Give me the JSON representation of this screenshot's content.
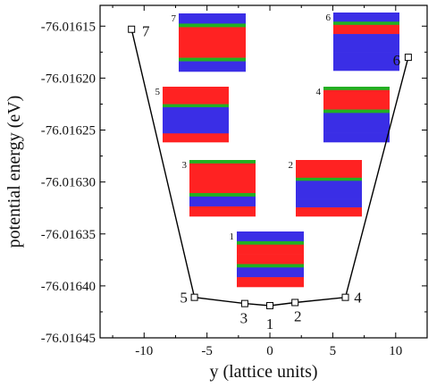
{
  "chart_data": {
    "type": "line",
    "xlabel": "y (lattice units)",
    "ylabel": "potential energy (eV)",
    "xlim": [
      -13.5,
      12.5
    ],
    "ylim": [
      -76.01645,
      -76.01613
    ],
    "x_ticks": [
      -10,
      -5,
      0,
      5,
      10
    ],
    "x_tick_labels": [
      "-10",
      "-5",
      "0",
      "5",
      "10"
    ],
    "y_ticks": [
      -76.01645,
      -76.0164,
      -76.01635,
      -76.0163,
      -76.01625,
      -76.0162,
      -76.01615
    ],
    "y_tick_labels": [
      "-76.01645",
      "-76.01640",
      "-76.01635",
      "-76.01630",
      "-76.01625",
      "-76.01620",
      "-76.01615"
    ],
    "grid": false,
    "series": [
      {
        "marker": "open-square",
        "color": "#000000",
        "points": [
          {
            "label": "7",
            "x": -11,
            "y": -76.016153
          },
          {
            "label": "5",
            "x": -6,
            "y": -76.016411
          },
          {
            "label": "3",
            "x": -2,
            "y": -76.016417
          },
          {
            "label": "1",
            "x": 0,
            "y": -76.016419
          },
          {
            "label": "2",
            "x": 2,
            "y": -76.016416
          },
          {
            "label": "4",
            "x": 6,
            "y": -76.016411
          },
          {
            "label": "6",
            "x": 11,
            "y": -76.01618
          }
        ]
      }
    ],
    "insets": [
      {
        "label": "7",
        "layers": [
          "blue",
          "green",
          "red",
          "red",
          "red",
          "green",
          "blue"
        ]
      },
      {
        "label": "6",
        "layers": [
          "blue",
          "green",
          "red",
          "blue",
          "blue",
          "blue",
          "blue"
        ]
      },
      {
        "label": "5",
        "layers": [
          "red",
          "red",
          "green",
          "blue",
          "blue",
          "blue",
          "red"
        ]
      },
      {
        "label": "4",
        "layers": [
          "green",
          "red",
          "red",
          "green",
          "blue",
          "blue",
          "blue"
        ]
      },
      {
        "label": "3",
        "layers": [
          "green",
          "red",
          "red",
          "red",
          "green",
          "blue",
          "red"
        ]
      },
      {
        "label": "2",
        "layers": [
          "red",
          "red",
          "green",
          "blue",
          "blue",
          "blue",
          "red"
        ]
      },
      {
        "label": "1",
        "layers": [
          "blue",
          "green",
          "red",
          "red",
          "green",
          "blue",
          "red"
        ]
      }
    ],
    "colors": {
      "red": "#ff2222",
      "green": "#22b022",
      "blue": "#3a2ee6"
    }
  }
}
